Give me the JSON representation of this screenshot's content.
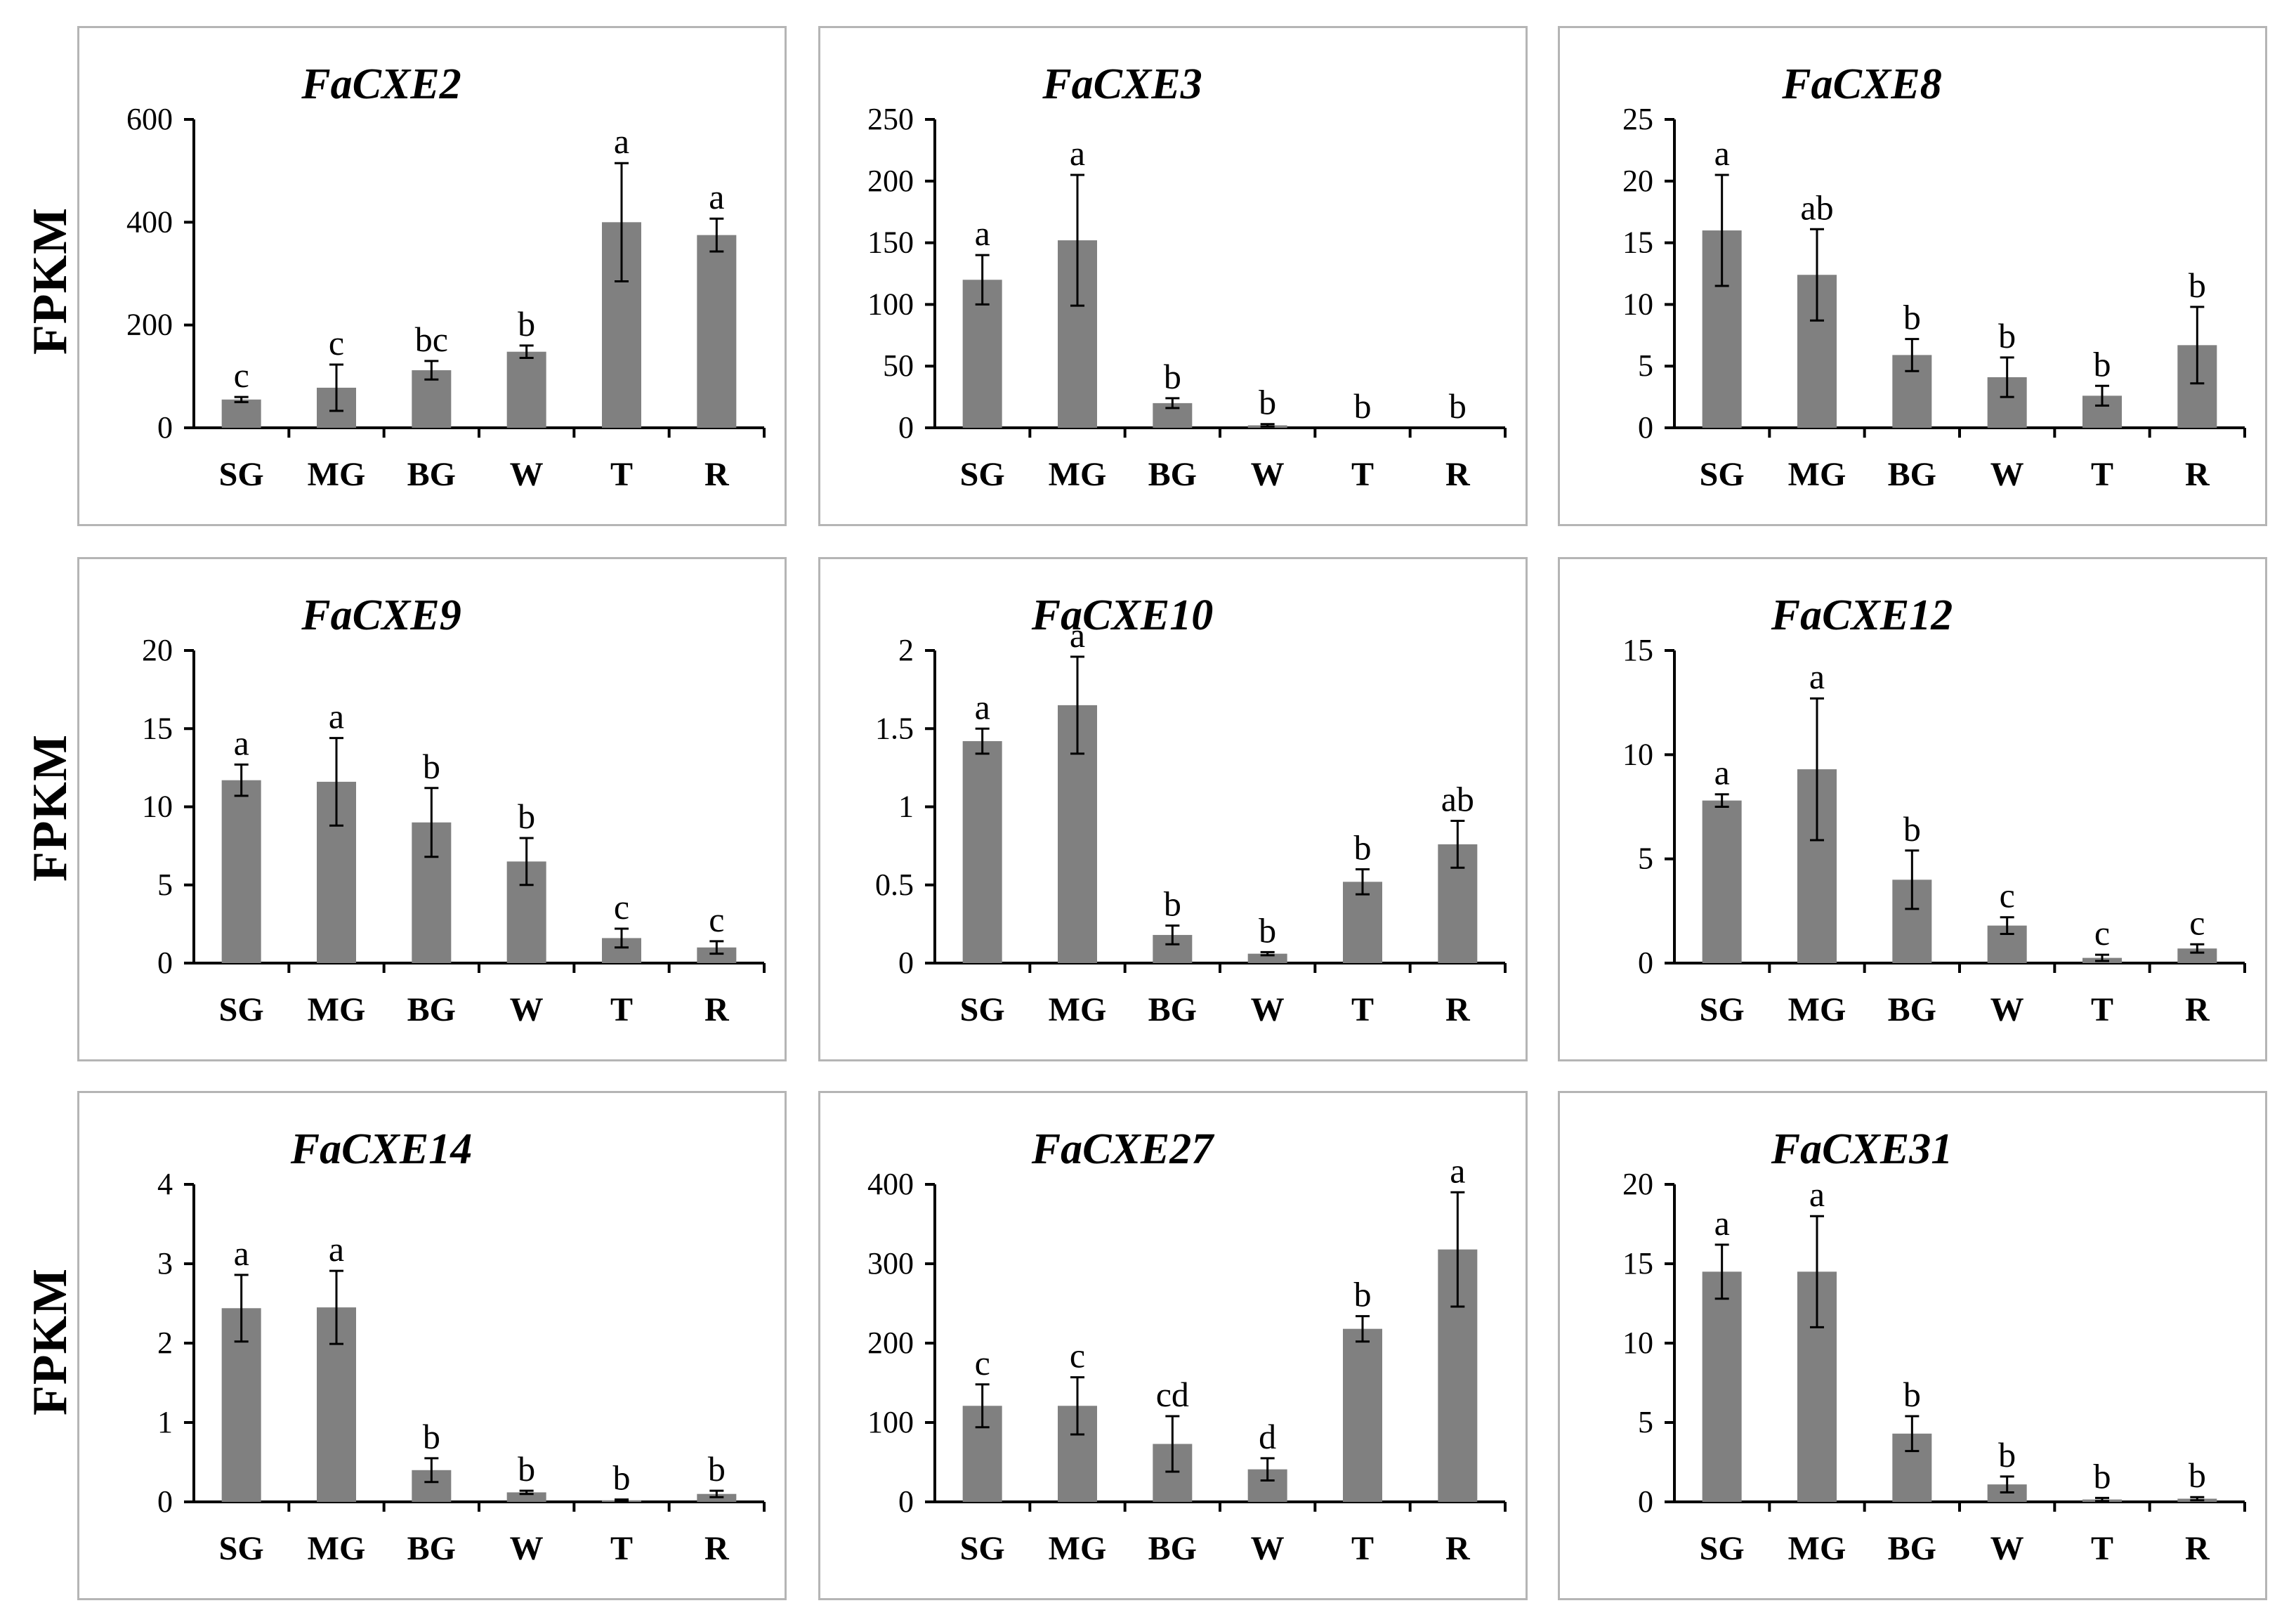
{
  "y_axis_label": "FPKM",
  "colors": {
    "bar": "#808080",
    "axis": "#000000",
    "border": "#b5b5b5"
  },
  "chart_data": [
    {
      "type": "bar",
      "title": "FaCXE2",
      "ylabel": "FPKM",
      "categories": [
        "SG",
        "MG",
        "BG",
        "W",
        "T",
        "R"
      ],
      "values": [
        55,
        78,
        112,
        148,
        400,
        375
      ],
      "errors": [
        5,
        45,
        18,
        12,
        115,
        32
      ],
      "labels": [
        "c",
        "c",
        "bc",
        "b",
        "a",
        "a"
      ],
      "ylim": [
        0,
        600
      ],
      "yticks": [
        "0",
        "200",
        "400",
        "600"
      ],
      "ytick_values": [
        0,
        200,
        400,
        600
      ]
    },
    {
      "type": "bar",
      "title": "FaCXE3",
      "ylabel": "",
      "categories": [
        "SG",
        "MG",
        "BG",
        "W",
        "T",
        "R"
      ],
      "values": [
        120,
        152,
        20,
        2,
        0,
        0
      ],
      "errors": [
        20,
        53,
        4,
        1,
        0,
        0
      ],
      "labels": [
        "a",
        "a",
        "b",
        "b",
        "b",
        "b"
      ],
      "ylim": [
        0,
        250
      ],
      "yticks": [
        "0",
        "50",
        "100",
        "150",
        "200",
        "250"
      ],
      "ytick_values": [
        0,
        50,
        100,
        150,
        200,
        250
      ]
    },
    {
      "type": "bar",
      "title": "FaCXE8",
      "ylabel": "",
      "categories": [
        "SG",
        "MG",
        "BG",
        "W",
        "T",
        "R"
      ],
      "values": [
        16,
        12.4,
        5.9,
        4.1,
        2.6,
        6.7
      ],
      "errors": [
        4.5,
        3.7,
        1.3,
        1.6,
        0.8,
        3.1
      ],
      "labels": [
        "a",
        "ab",
        "b",
        "b",
        "b",
        "b"
      ],
      "ylim": [
        0,
        25
      ],
      "yticks": [
        "0",
        "5",
        "10",
        "15",
        "20",
        "25"
      ],
      "ytick_values": [
        0,
        5,
        10,
        15,
        20,
        25
      ]
    },
    {
      "type": "bar",
      "title": "FaCXE9",
      "ylabel": "FPKM",
      "categories": [
        "SG",
        "MG",
        "BG",
        "W",
        "T",
        "R"
      ],
      "values": [
        11.7,
        11.6,
        9.0,
        6.5,
        1.6,
        1.0
      ],
      "errors": [
        1.0,
        2.8,
        2.2,
        1.5,
        0.6,
        0.4
      ],
      "labels": [
        "a",
        "a",
        "b",
        "b",
        "c",
        "c"
      ],
      "ylim": [
        0,
        20
      ],
      "yticks": [
        "0",
        "5",
        "10",
        "15",
        "20"
      ],
      "ytick_values": [
        0,
        5,
        10,
        15,
        20
      ]
    },
    {
      "type": "bar",
      "title": "FaCXE10",
      "ylabel": "",
      "categories": [
        "SG",
        "MG",
        "BG",
        "W",
        "T",
        "R"
      ],
      "values": [
        1.42,
        1.65,
        0.18,
        0.06,
        0.52,
        0.76
      ],
      "errors": [
        0.08,
        0.31,
        0.06,
        0.01,
        0.08,
        0.15
      ],
      "labels": [
        "a",
        "a",
        "b",
        "b",
        "b",
        "ab"
      ],
      "ylim": [
        0,
        2
      ],
      "yticks": [
        "0",
        "0.5",
        "1",
        "1.5",
        "2"
      ],
      "ytick_values": [
        0,
        0.5,
        1,
        1.5,
        2
      ]
    },
    {
      "type": "bar",
      "title": "FaCXE12",
      "ylabel": "",
      "categories": [
        "SG",
        "MG",
        "BG",
        "W",
        "T",
        "R"
      ],
      "values": [
        7.8,
        9.3,
        4.0,
        1.8,
        0.25,
        0.7
      ],
      "errors": [
        0.3,
        3.4,
        1.4,
        0.4,
        0.15,
        0.2
      ],
      "labels": [
        "a",
        "a",
        "b",
        "c",
        "c",
        "c"
      ],
      "ylim": [
        0,
        15
      ],
      "yticks": [
        "0",
        "5",
        "10",
        "15"
      ],
      "ytick_values": [
        0,
        5,
        10,
        15
      ]
    },
    {
      "type": "bar",
      "title": "FaCXE14",
      "ylabel": "FPKM",
      "categories": [
        "SG",
        "MG",
        "BG",
        "W",
        "T",
        "R"
      ],
      "values": [
        2.44,
        2.45,
        0.4,
        0.12,
        0.02,
        0.1
      ],
      "errors": [
        0.42,
        0.46,
        0.15,
        0.02,
        0.01,
        0.04
      ],
      "labels": [
        "a",
        "a",
        "b",
        "b",
        "b",
        "b"
      ],
      "ylim": [
        0,
        4
      ],
      "yticks": [
        "0",
        "1",
        "2",
        "3",
        "4"
      ],
      "ytick_values": [
        0,
        1,
        2,
        3,
        4
      ]
    },
    {
      "type": "bar",
      "title": "FaCXE27",
      "ylabel": "",
      "categories": [
        "SG",
        "MG",
        "BG",
        "W",
        "T",
        "R"
      ],
      "values": [
        121,
        121,
        73,
        41,
        218,
        318
      ],
      "errors": [
        27,
        36,
        35,
        14,
        16,
        72
      ],
      "labels": [
        "c",
        "c",
        "cd",
        "d",
        "b",
        "a"
      ],
      "ylim": [
        0,
        400
      ],
      "yticks": [
        "0",
        "100",
        "200",
        "300",
        "400"
      ],
      "ytick_values": [
        0,
        100,
        200,
        300,
        400
      ]
    },
    {
      "type": "bar",
      "title": "FaCXE31",
      "ylabel": "",
      "categories": [
        "SG",
        "MG",
        "BG",
        "W",
        "T",
        "R"
      ],
      "values": [
        14.5,
        14.5,
        4.3,
        1.1,
        0.15,
        0.2
      ],
      "errors": [
        1.7,
        3.5,
        1.1,
        0.5,
        0.1,
        0.1
      ],
      "labels": [
        "a",
        "a",
        "b",
        "b",
        "b",
        "b"
      ],
      "ylim": [
        0,
        20
      ],
      "yticks": [
        "0",
        "5",
        "10",
        "15",
        "20"
      ],
      "ytick_values": [
        0,
        5,
        10,
        15,
        20
      ]
    }
  ]
}
